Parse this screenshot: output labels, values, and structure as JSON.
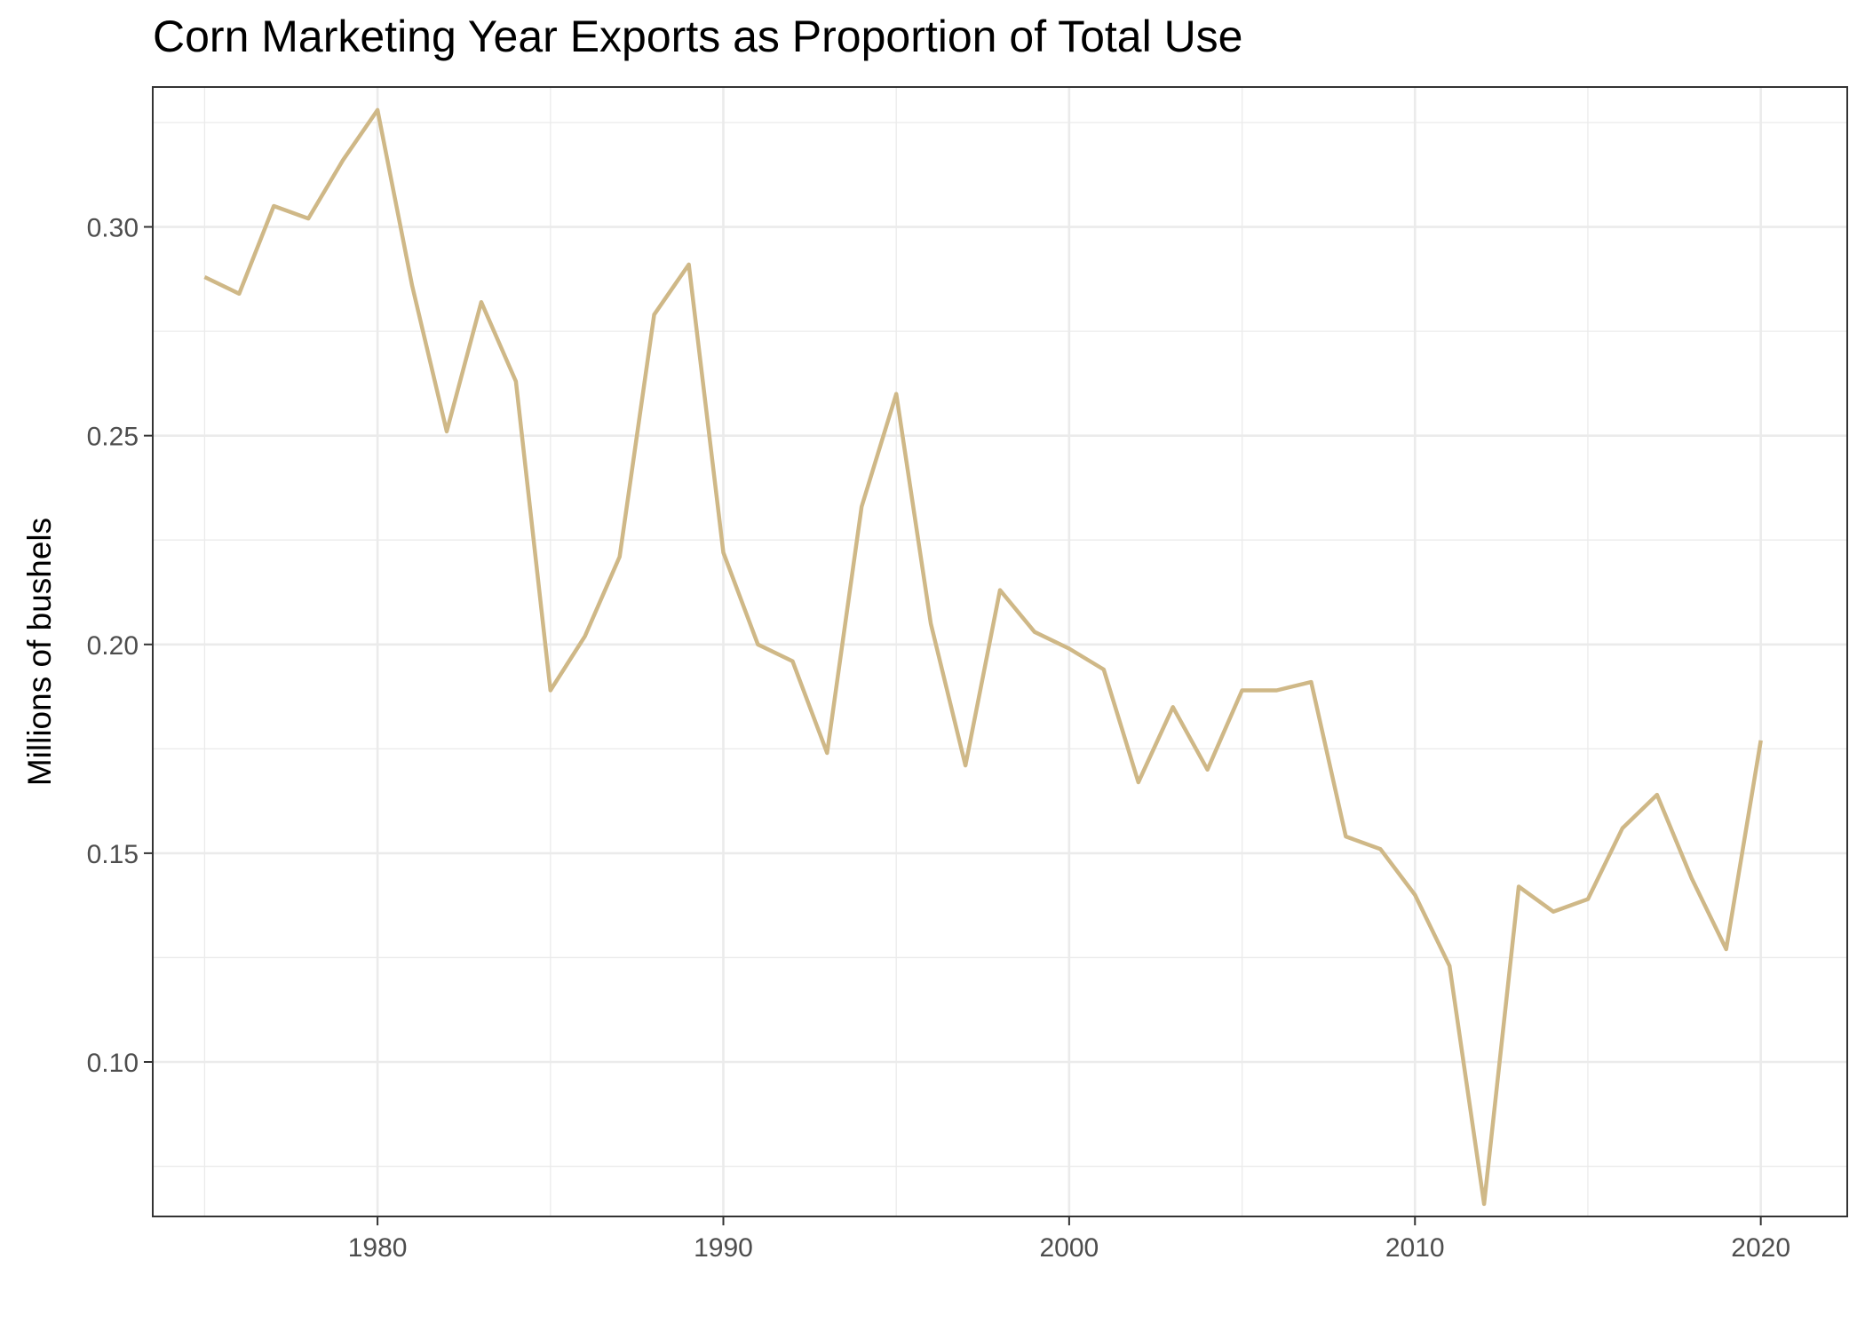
{
  "chart_data": {
    "type": "line",
    "title": "Corn Marketing Year Exports as Proportion of Total Use",
    "xlabel": "",
    "ylabel": "Millions of bushels",
    "xlim": [
      1973.5,
      2022.5
    ],
    "ylim": [
      0.063,
      0.3335
    ],
    "x_ticks": [
      1980,
      1990,
      2000,
      2010,
      2020
    ],
    "y_ticks": [
      0.1,
      0.15,
      0.2,
      0.25,
      0.3
    ],
    "x_tick_labels": [
      "1980",
      "1990",
      "2000",
      "2010",
      "2020"
    ],
    "y_tick_labels": [
      "0.10",
      "0.15",
      "0.20",
      "0.25",
      "0.30"
    ],
    "grid": true,
    "series": [
      {
        "color": "#CFB887",
        "x": [
          1975,
          1976,
          1977,
          1978,
          1979,
          1980,
          1981,
          1982,
          1983,
          1984,
          1985,
          1986,
          1987,
          1988,
          1989,
          1990,
          1991,
          1992,
          1993,
          1994,
          1995,
          1996,
          1997,
          1998,
          1999,
          2000,
          2001,
          2002,
          2003,
          2004,
          2005,
          2006,
          2007,
          2008,
          2009,
          2010,
          2011,
          2012,
          2013,
          2014,
          2015,
          2016,
          2017,
          2018,
          2019,
          2020
        ],
        "values": [
          0.288,
          0.284,
          0.305,
          0.302,
          0.316,
          0.328,
          0.286,
          0.251,
          0.282,
          0.263,
          0.189,
          0.202,
          0.221,
          0.279,
          0.291,
          0.222,
          0.2,
          0.196,
          0.174,
          0.233,
          0.26,
          0.205,
          0.171,
          0.213,
          0.203,
          0.199,
          0.194,
          0.167,
          0.185,
          0.17,
          0.189,
          0.189,
          0.191,
          0.154,
          0.151,
          0.14,
          0.123,
          0.066,
          0.142,
          0.136,
          0.139,
          0.156,
          0.164,
          0.144,
          0.127,
          0.177
        ]
      }
    ]
  }
}
